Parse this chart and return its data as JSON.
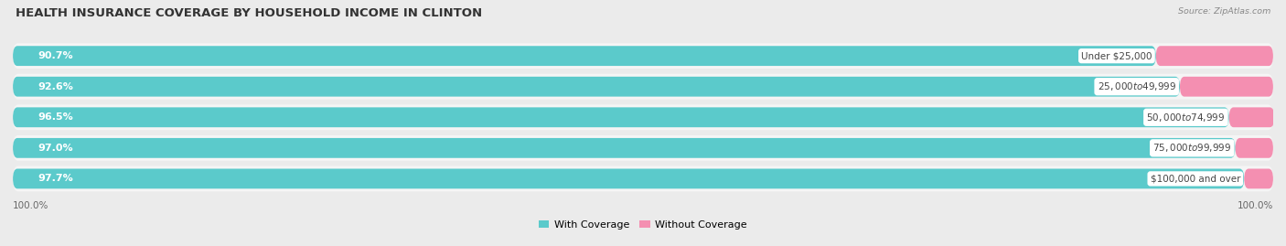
{
  "title": "HEALTH INSURANCE COVERAGE BY HOUSEHOLD INCOME IN CLINTON",
  "source": "Source: ZipAtlas.com",
  "categories": [
    "Under $25,000",
    "$25,000 to $49,999",
    "$50,000 to $74,999",
    "$75,000 to $99,999",
    "$100,000 and over"
  ],
  "with_coverage": [
    90.7,
    92.6,
    96.5,
    97.0,
    97.7
  ],
  "without_coverage": [
    9.3,
    7.4,
    3.6,
    3.0,
    2.3
  ],
  "color_with": "#5bcacb",
  "color_without": "#f48fb1",
  "bg_color": "#ebebeb",
  "row_bg_color": "#f5f5f5",
  "title_fontsize": 9.5,
  "label_fontsize": 8,
  "cat_fontsize": 7.5,
  "tick_fontsize": 7.5,
  "legend_fontsize": 8,
  "bar_height": 0.65,
  "total_width": 100
}
